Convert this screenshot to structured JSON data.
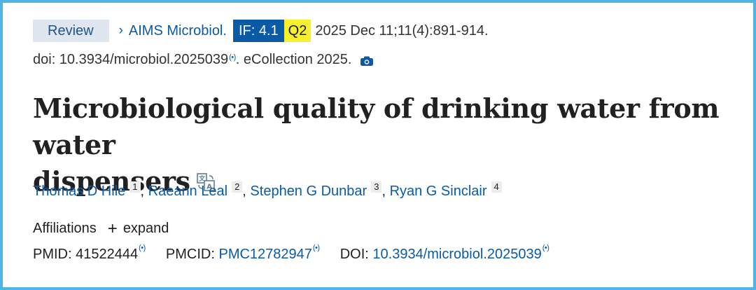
{
  "header": {
    "article_type": "Review",
    "journal": "AIMS Microbiol.",
    "impact_factor": "IF: 4.1",
    "quartile": "Q2",
    "citation": "2025 Dec 11;11(4):891-914.",
    "doi_line": "doi: 10.3934/microbiol.2025039",
    "ecollection": ". eCollection 2025."
  },
  "title": {
    "line1": "Microbiological quality of drinking water from water",
    "line2": "dispensers"
  },
  "authors": [
    {
      "name": "Thomas D Hile",
      "aff": "1"
    },
    {
      "name": "Raeann Leal",
      "aff": "2"
    },
    {
      "name": "Stephen G Dunbar",
      "aff": "3"
    },
    {
      "name": "Ryan G Sinclair",
      "aff": "4"
    }
  ],
  "affiliations": {
    "label": "Affiliations",
    "expand_label": "expand"
  },
  "identifiers": {
    "pmid_label": "PMID:",
    "pmid": "41522444",
    "pmcid_label": "PMCID:",
    "pmcid": "PMC12782947",
    "doi_label": "DOI:",
    "doi": "10.3934/microbiol.2025039"
  },
  "icons": {
    "chevron": "chevron-right-icon",
    "wave": "signal-wave-icon",
    "camera": "camera-icon",
    "translate": "translate-icon",
    "plus": "plus-icon"
  },
  "colors": {
    "link": "#0a5aa6",
    "review_bg": "#dfe6ef",
    "if_bg": "#0a5aa6",
    "q_bg": "#f7f02e",
    "frame": "#4fb3e6"
  }
}
